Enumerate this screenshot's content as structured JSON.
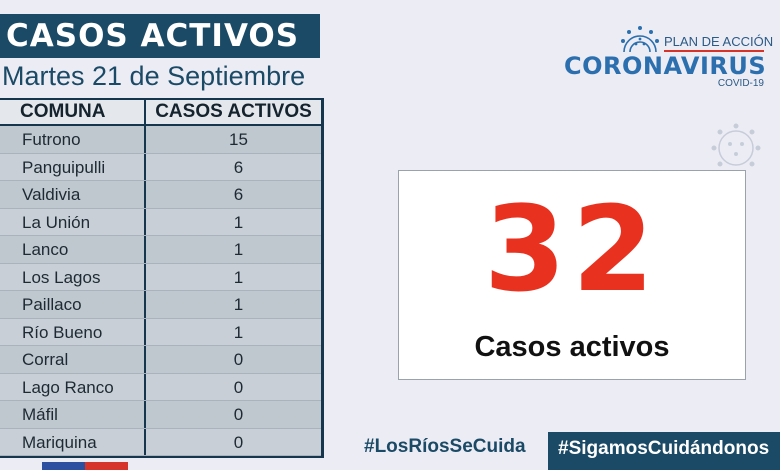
{
  "header": {
    "title": "CASOS ACTIVOS",
    "date": "Martes 21 de Septiembre"
  },
  "table": {
    "headers": [
      "COMUNA",
      "CASOS ACTIVOS"
    ],
    "rows": [
      {
        "comuna": "Futrono",
        "casos": "15"
      },
      {
        "comuna": "Panguipulli",
        "casos": "6"
      },
      {
        "comuna": "Valdivia",
        "casos": "6"
      },
      {
        "comuna": "La Unión",
        "casos": "1"
      },
      {
        "comuna": "Lanco",
        "casos": "1"
      },
      {
        "comuna": "Los Lagos",
        "casos": "1"
      },
      {
        "comuna": "Paillaco",
        "casos": "1"
      },
      {
        "comuna": "Río Bueno",
        "casos": "1"
      },
      {
        "comuna": "Corral",
        "casos": "0"
      },
      {
        "comuna": "Lago Ranco",
        "casos": "0"
      },
      {
        "comuna": "Máfil",
        "casos": "0"
      },
      {
        "comuna": "Mariquina",
        "casos": "0"
      }
    ]
  },
  "logo": {
    "plan": "PLAN DE ACCIÓN",
    "name": "CORONAVIRUS",
    "sub": "COVID-19"
  },
  "summary": {
    "total": "32",
    "label": "Casos activos"
  },
  "hashtags": {
    "primary": "#LosRíosSeCuida",
    "secondary": "#SigamosCuidándonos"
  },
  "colors": {
    "navy": "#1b4a66",
    "accent_red": "#e8321f",
    "flag_blue": "#2d4fa0",
    "flag_red": "#d6332b"
  }
}
